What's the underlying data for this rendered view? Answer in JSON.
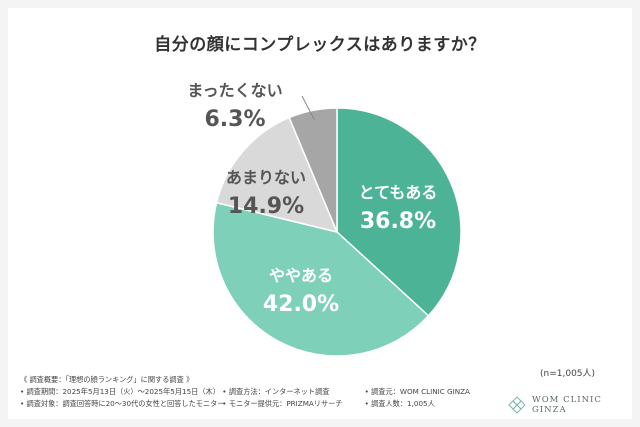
{
  "chart_data": {
    "type": "pie",
    "title": "自分の顔にコンプレックスはありますか？",
    "slices": [
      {
        "label": "とてもある",
        "value": 36.8,
        "value_label": "36.8%",
        "color": "#4cb396",
        "text_color": "#ffffff"
      },
      {
        "label": "ややある",
        "value": 42.0,
        "value_label": "42.0%",
        "color": "#7fd0b8",
        "text_color": "#ffffff"
      },
      {
        "label": "あまりない",
        "value": 14.9,
        "value_label": "14.9%",
        "color": "#d9d9d9",
        "text_color": "#555555"
      },
      {
        "label": "まったくない",
        "value": 6.3,
        "value_label": "6.3%",
        "color": "#a6a6a6",
        "text_color": "#555555"
      }
    ],
    "start": "12 o'clock, clockwise"
  },
  "sample_size": "(n=1,005人)",
  "notes": {
    "heading": "《 調査概要：「理想の顔ランキング」に関する調査 》",
    "period": "• 調査期間：2025年5月13日（火）〜2025年5月15日（木）",
    "method": "• 調査方法：インターネット調査",
    "source": "• 調査元：WOM CLINIC GINZA",
    "target": "• 調査対象：調査回答時に20〜30代の女性と回答したモニター",
    "provider": "• モニター提供元：PRIZMAリサーチ",
    "count": "• 調査人数：1,005人"
  },
  "brand": {
    "name": "WOM CLINIC GINZA",
    "logo_icon": "diamond-lattice-icon"
  }
}
